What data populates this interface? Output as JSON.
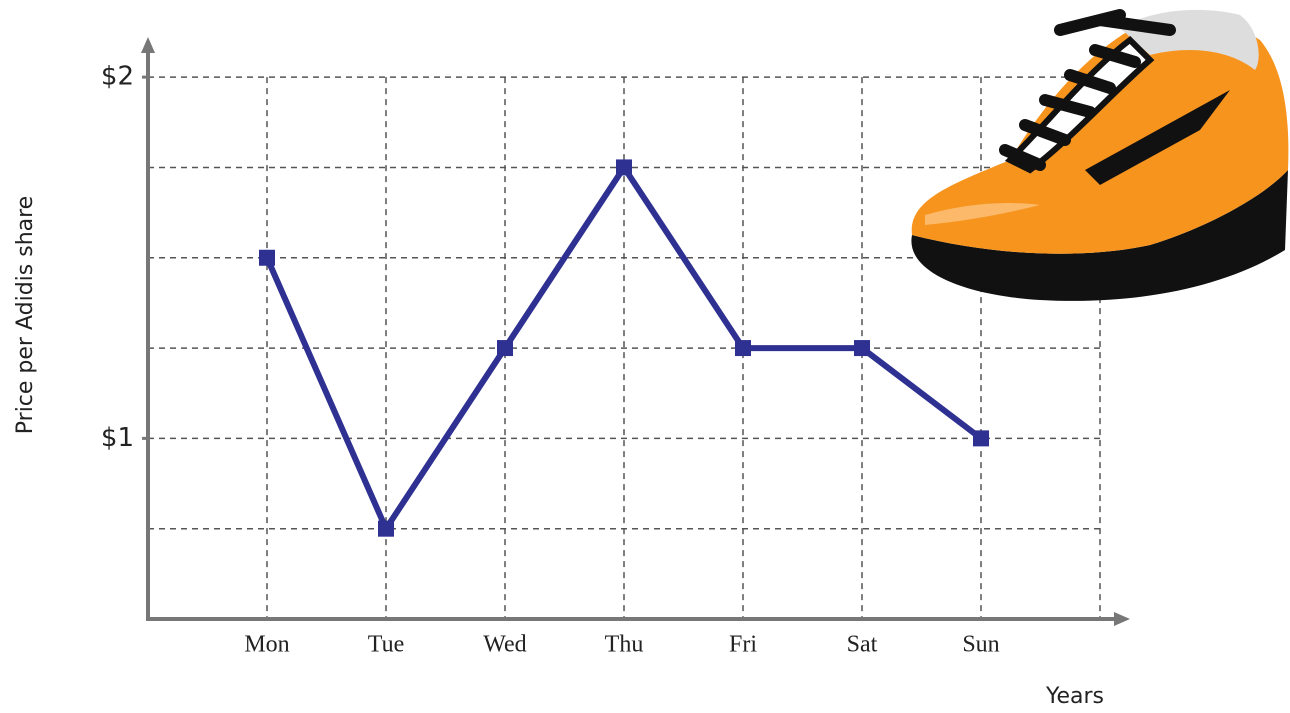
{
  "chart_data": {
    "type": "line",
    "y_label": "Price per Adidis share",
    "x_label": "Years",
    "categories": [
      "Mon",
      "Tue",
      "Wed",
      "Thu",
      "Fri",
      "Sat",
      "Sun",
      null
    ],
    "values": [
      1.5,
      0.75,
      1.25,
      1.75,
      1.25,
      1.25,
      1.0,
      null
    ],
    "color": "#2e3192",
    "ylim": [
      0.5,
      2.1
    ],
    "yticks": [
      {
        "value": 1,
        "label": "$1"
      },
      {
        "value": 2,
        "label": "$2"
      }
    ],
    "ygrid": [
      0.75,
      1,
      1.25,
      1.5,
      1.75,
      2
    ],
    "grid": true
  }
}
